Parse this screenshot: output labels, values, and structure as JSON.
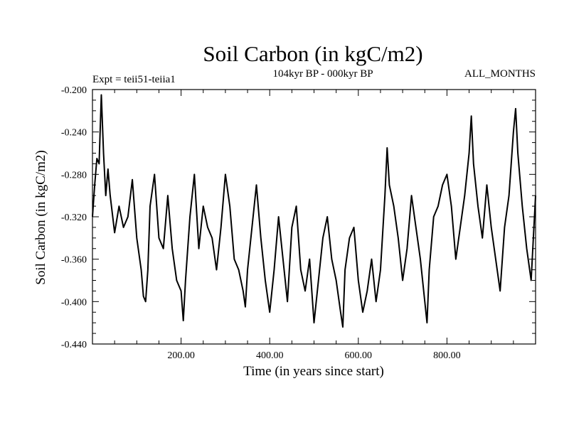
{
  "chart_data": {
    "type": "line",
    "title": "Soil Carbon (in kgC/m2)",
    "subtitle": "104kyr BP - 000kyr BP",
    "annotation_left": "Expt = teii51-teiia1",
    "annotation_right": "ALL_MONTHS",
    "xlabel": "Time (in years since start)",
    "ylabel": "Soil Carbon (in kgC/m2)",
    "xlim": [
      0,
      1000
    ],
    "ylim": [
      -0.44,
      -0.2
    ],
    "x_ticks_major": [
      200,
      400,
      600,
      800
    ],
    "x_tick_labels": [
      "200.00",
      "400.00",
      "600.00",
      "800.00"
    ],
    "y_ticks_major": [
      -0.44,
      -0.4,
      -0.36,
      -0.32,
      -0.28,
      -0.24,
      -0.2
    ],
    "y_tick_labels": [
      "-0.440",
      "-0.400",
      "-0.360",
      "-0.320",
      "-0.280",
      "-0.240",
      "-0.200"
    ],
    "grid": false,
    "series": [
      {
        "x": [
          0,
          5,
          10,
          15,
          20,
          25,
          30,
          35,
          40,
          50,
          60,
          70,
          80,
          90,
          100,
          110,
          115,
          120,
          125,
          130,
          140,
          150,
          160,
          170,
          180,
          190,
          200,
          205,
          210,
          220,
          230,
          240,
          250,
          260,
          270,
          280,
          290,
          300,
          310,
          320,
          330,
          340,
          345,
          350,
          360,
          370,
          380,
          390,
          400,
          410,
          420,
          430,
          440,
          450,
          460,
          470,
          480,
          490,
          500,
          510,
          520,
          530,
          540,
          550,
          560,
          565,
          570,
          580,
          590,
          600,
          610,
          620,
          630,
          640,
          650,
          660,
          665,
          670,
          680,
          690,
          700,
          710,
          720,
          730,
          740,
          750,
          755,
          760,
          770,
          780,
          790,
          800,
          810,
          820,
          830,
          840,
          850,
          855,
          860,
          870,
          880,
          890,
          900,
          910,
          920,
          930,
          940,
          950,
          955,
          960,
          970,
          980,
          990,
          1000
        ],
        "values": [
          -0.32,
          -0.29,
          -0.265,
          -0.27,
          -0.205,
          -0.26,
          -0.3,
          -0.275,
          -0.3,
          -0.335,
          -0.31,
          -0.33,
          -0.32,
          -0.285,
          -0.34,
          -0.37,
          -0.395,
          -0.4,
          -0.37,
          -0.31,
          -0.28,
          -0.34,
          -0.35,
          -0.3,
          -0.35,
          -0.38,
          -0.39,
          -0.418,
          -0.38,
          -0.32,
          -0.28,
          -0.35,
          -0.31,
          -0.33,
          -0.34,
          -0.37,
          -0.33,
          -0.28,
          -0.31,
          -0.36,
          -0.37,
          -0.39,
          -0.405,
          -0.37,
          -0.33,
          -0.29,
          -0.34,
          -0.38,
          -0.41,
          -0.37,
          -0.32,
          -0.36,
          -0.4,
          -0.33,
          -0.31,
          -0.37,
          -0.39,
          -0.36,
          -0.42,
          -0.38,
          -0.34,
          -0.32,
          -0.36,
          -0.38,
          -0.41,
          -0.424,
          -0.37,
          -0.34,
          -0.33,
          -0.38,
          -0.41,
          -0.39,
          -0.36,
          -0.4,
          -0.37,
          -0.3,
          -0.255,
          -0.29,
          -0.31,
          -0.34,
          -0.38,
          -0.35,
          -0.3,
          -0.33,
          -0.36,
          -0.4,
          -0.42,
          -0.37,
          -0.32,
          -0.31,
          -0.29,
          -0.28,
          -0.31,
          -0.36,
          -0.33,
          -0.3,
          -0.26,
          -0.225,
          -0.27,
          -0.31,
          -0.34,
          -0.29,
          -0.33,
          -0.36,
          -0.39,
          -0.33,
          -0.3,
          -0.24,
          -0.218,
          -0.26,
          -0.31,
          -0.35,
          -0.38,
          -0.3
        ]
      }
    ]
  }
}
